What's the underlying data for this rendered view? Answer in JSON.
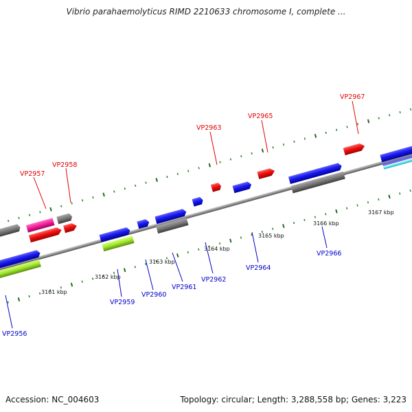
{
  "title": "Vibrio parahaemolyticus RIMD 2210633 chromosome I, complete ...",
  "footer": {
    "accession": "Accession: NC_004603",
    "summary": "Topology: circular; Length: 3,288,558 bp; Genes: 3,223"
  },
  "colors": {
    "top_strand_label": "#e00000",
    "bottom_strand_label": "#0000c8",
    "backbone": "#909090",
    "minor_tick": "#2a8a2a",
    "major_tick": "#1d6b1d"
  },
  "icons": [
    "gene-arrow",
    "backbone-bar",
    "scale-tick"
  ],
  "scale": {
    "ticks": [
      "3161 kbp",
      "3162 kbp",
      "3163 kbp",
      "3164 kbp",
      "3165 kbp",
      "3166 kbp",
      "3167 kbp"
    ]
  },
  "genes_top": [
    "VP2957",
    "VP2958",
    "VP2963",
    "VP2965",
    "VP2967"
  ],
  "genes_bottom": [
    "VP2956",
    "VP2959",
    "VP2960",
    "VP2961",
    "VP2962",
    "VP2964",
    "VP2966"
  ]
}
